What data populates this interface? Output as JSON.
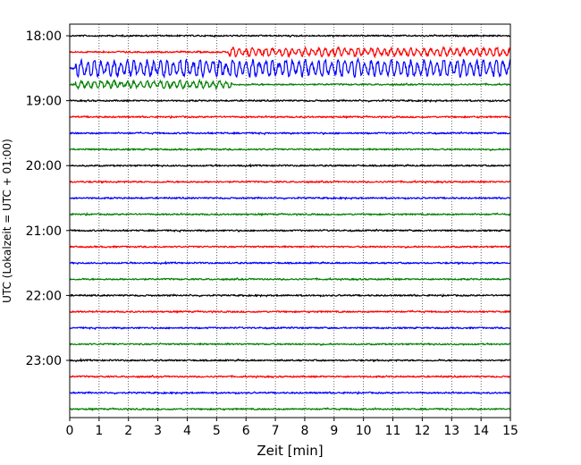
{
  "chart_data": {
    "type": "line",
    "subtype": "helicorder",
    "title": "",
    "xlabel": "Zeit  [min]",
    "ylabel": "UTC (Lokalzeit = UTC + 01:00)",
    "xlim": [
      0,
      15
    ],
    "xticks": [
      "0",
      "1",
      "2",
      "3",
      "4",
      "5",
      "6",
      "7",
      "8",
      "9",
      "10",
      "11",
      "12",
      "13",
      "14",
      "15"
    ],
    "ytick_labels": [
      "18:00",
      "19:00",
      "20:00",
      "21:00",
      "22:00",
      "23:00"
    ],
    "grid": "vertical dotted at each minute",
    "trace_start_times": [
      "18:00",
      "18:15",
      "18:30",
      "18:45",
      "19:00",
      "19:15",
      "19:30",
      "19:45",
      "20:00",
      "20:15",
      "20:30",
      "20:45",
      "21:00",
      "21:15",
      "21:30",
      "21:45",
      "22:00",
      "22:15",
      "22:30",
      "22:45",
      "23:00",
      "23:15",
      "23:30",
      "23:45"
    ],
    "trace_minutes_per_line": 15,
    "trace_colors": [
      "#000000",
      "#ff0000",
      "#0000ff",
      "#008000"
    ],
    "notable_events": [
      {
        "trace": "18:15",
        "from_min": 5.4,
        "to_min": 15,
        "level": "elevated"
      },
      {
        "trace": "18:30",
        "from_min": 0.2,
        "to_min": 15,
        "level": "strong"
      },
      {
        "trace": "18:45",
        "from_min": 0.2,
        "to_min": 5.5,
        "level": "moderate"
      }
    ]
  }
}
